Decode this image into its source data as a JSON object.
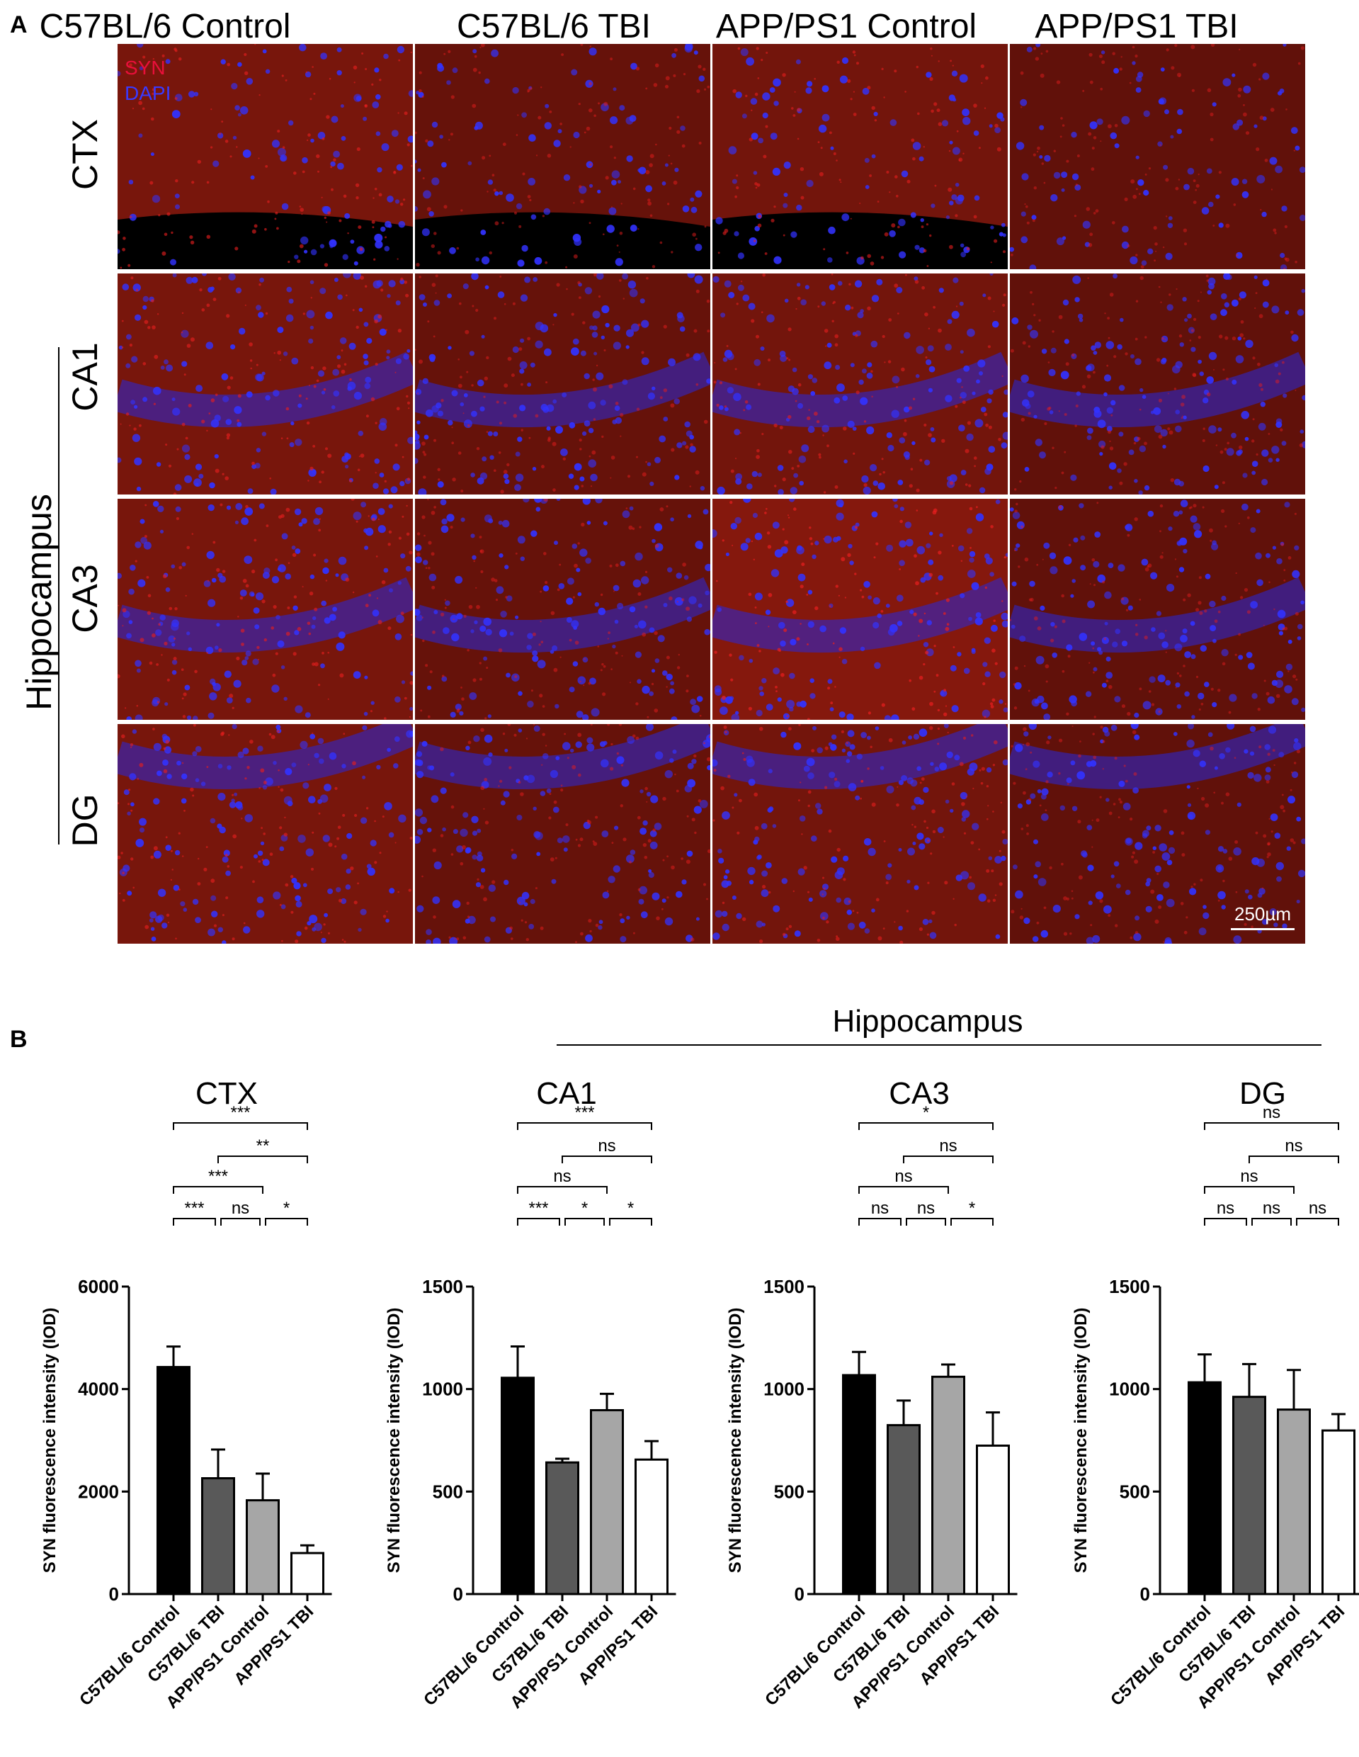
{
  "panel_a": {
    "letter": "A",
    "columns": [
      "C57BL/6 Control",
      "C57BL/6 TBI",
      "APP/PS1 Control",
      "APP/PS1 TBI"
    ],
    "rows": [
      "CTX",
      "CA1",
      "CA3",
      "DG"
    ],
    "region_label": "Hippocampus",
    "stain_labels": {
      "syn": "SYN",
      "dapi": "DAPI"
    },
    "scale_bar": "250µm",
    "colors": {
      "syn": "#e8103a",
      "dapi": "#2b2bff",
      "tissue": "#7a1810",
      "background": "#000000"
    }
  },
  "panel_b": {
    "letter": "B",
    "region_label": "Hippocampus",
    "ylabel": "SYN fluorescence intensity (IOD)"
  },
  "chart_data": [
    {
      "type": "bar",
      "title": "CTX",
      "categories": [
        "C57BL/6 Control",
        "C57BL/6 TBI",
        "APP/PS1 Control",
        "APP/PS1 TBI"
      ],
      "values": [
        4430,
        2260,
        1830,
        800
      ],
      "error": [
        400,
        560,
        520,
        150
      ],
      "ylim": [
        0,
        6000
      ],
      "yticks": [
        0,
        2000,
        4000,
        6000
      ],
      "ylabel": "SYN fluorescence intensity (IOD)",
      "bar_colors": [
        "#000000",
        "#595959",
        "#a6a6a6",
        "#ffffff"
      ],
      "significance": [
        {
          "from": 0,
          "to": 3,
          "label": "***"
        },
        {
          "from": 1,
          "to": 3,
          "label": "**"
        },
        {
          "from": 0,
          "to": 2,
          "label": "***"
        },
        {
          "from": 0,
          "to": 1,
          "label": "***"
        },
        {
          "from": 1,
          "to": 2,
          "label": "ns"
        },
        {
          "from": 2,
          "to": 3,
          "label": "*"
        }
      ]
    },
    {
      "type": "bar",
      "title": "CA1",
      "categories": [
        "C57BL/6 Control",
        "C57BL/6 TBI",
        "APP/PS1 Control",
        "APP/PS1 TBI"
      ],
      "values": [
        1055,
        642,
        897,
        656
      ],
      "error": [
        153,
        18,
        80,
        90
      ],
      "ylim": [
        0,
        1500
      ],
      "yticks": [
        0,
        500,
        1000,
        1500
      ],
      "ylabel": "SYN fluorescence intensity (IOD)",
      "bar_colors": [
        "#000000",
        "#595959",
        "#a6a6a6",
        "#ffffff"
      ],
      "significance": [
        {
          "from": 0,
          "to": 3,
          "label": "***"
        },
        {
          "from": 1,
          "to": 3,
          "label": "ns"
        },
        {
          "from": 0,
          "to": 2,
          "label": "ns"
        },
        {
          "from": 0,
          "to": 1,
          "label": "***"
        },
        {
          "from": 1,
          "to": 2,
          "label": "*"
        },
        {
          "from": 2,
          "to": 3,
          "label": "*"
        }
      ]
    },
    {
      "type": "bar",
      "title": "CA3",
      "categories": [
        "C57BL/6 Control",
        "C57BL/6 TBI",
        "APP/PS1 Control",
        "APP/PS1 TBI"
      ],
      "values": [
        1068,
        824,
        1060,
        724
      ],
      "error": [
        113,
        120,
        60,
        162
      ],
      "ylim": [
        0,
        1500
      ],
      "yticks": [
        0,
        500,
        1000,
        1500
      ],
      "ylabel": "SYN fluorescence intensity (IOD)",
      "bar_colors": [
        "#000000",
        "#595959",
        "#a6a6a6",
        "#ffffff"
      ],
      "significance": [
        {
          "from": 0,
          "to": 3,
          "label": "*"
        },
        {
          "from": 1,
          "to": 3,
          "label": "ns"
        },
        {
          "from": 0,
          "to": 2,
          "label": "ns"
        },
        {
          "from": 0,
          "to": 1,
          "label": "ns"
        },
        {
          "from": 1,
          "to": 2,
          "label": "ns"
        },
        {
          "from": 2,
          "to": 3,
          "label": "*"
        }
      ]
    },
    {
      "type": "bar",
      "title": "DG",
      "categories": [
        "C57BL/6 Control",
        "C57BL/6 TBI",
        "APP/PS1 Control",
        "APP/PS1 TBI"
      ],
      "values": [
        1033,
        962,
        900,
        798
      ],
      "error": [
        136,
        160,
        193,
        80
      ],
      "ylim": [
        0,
        1500
      ],
      "yticks": [
        0,
        500,
        1000,
        1500
      ],
      "ylabel": "SYN fluorescence intensity (IOD)",
      "bar_colors": [
        "#000000",
        "#595959",
        "#a6a6a6",
        "#ffffff"
      ],
      "significance": [
        {
          "from": 0,
          "to": 3,
          "label": "ns"
        },
        {
          "from": 1,
          "to": 3,
          "label": "ns"
        },
        {
          "from": 0,
          "to": 2,
          "label": "ns"
        },
        {
          "from": 0,
          "to": 1,
          "label": "ns"
        },
        {
          "from": 1,
          "to": 2,
          "label": "ns"
        },
        {
          "from": 2,
          "to": 3,
          "label": "ns"
        }
      ]
    }
  ]
}
